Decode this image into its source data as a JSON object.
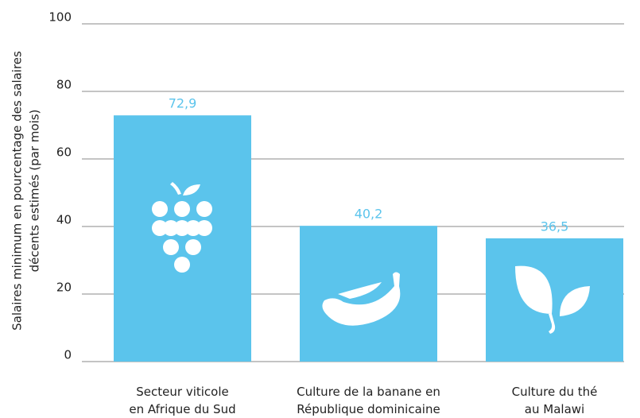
{
  "chart_data": {
    "type": "bar",
    "ylabel": [
      "Salaires minimum en pourcentage des salaires",
      "décents estimés (par mois)"
    ],
    "categories": [
      "Secteur viticole\nen Afrique du Sud",
      "Culture de la banane en\nRépublique dominicaine",
      "Culture du thé\nau Malawi"
    ],
    "values": [
      72.9,
      40.2,
      36.5
    ],
    "value_labels": [
      "72,9",
      "40,2",
      "36,5"
    ],
    "color": "#5bc4ec",
    "ylim": [
      0,
      100
    ],
    "yticks": [
      0,
      20,
      40,
      60,
      80,
      100
    ],
    "grid": true
  }
}
